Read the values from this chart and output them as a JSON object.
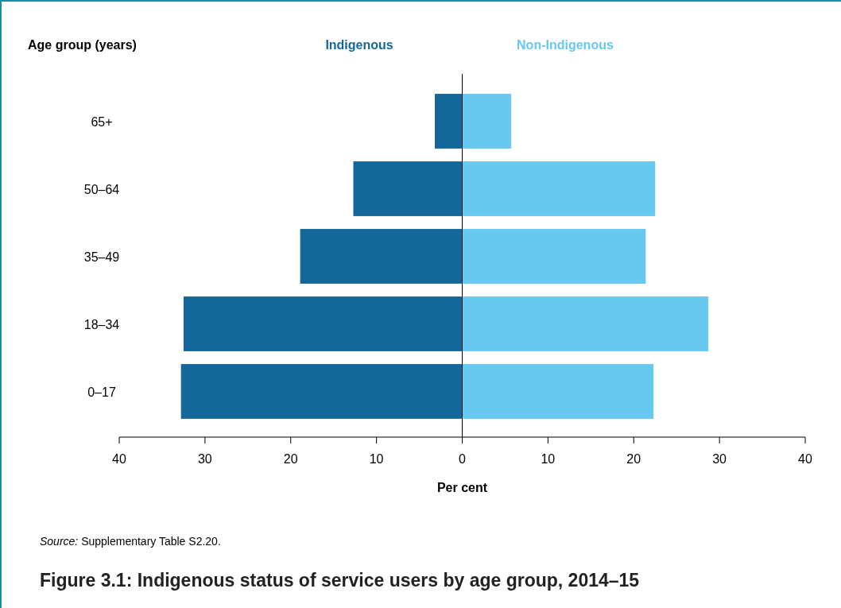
{
  "chart_data": {
    "type": "bar",
    "orientation": "horizontal",
    "title": "Figure 3.1: Indigenous status of service users by age group, 2014–15",
    "ylabel": "Age group (years)",
    "xlabel": "Per cent",
    "categories": [
      "65+",
      "50–64",
      "35–49",
      "18–34",
      "0–17"
    ],
    "series": [
      {
        "name": "Indigenous",
        "color": "#14679a",
        "values": [
          -3.2,
          -12.7,
          -18.9,
          -32.5,
          -32.8
        ]
      },
      {
        "name": "Non-Indigenous",
        "color": "#67c8f0",
        "values": [
          5.7,
          22.5,
          21.4,
          28.7,
          22.3
        ]
      }
    ],
    "xlim": [
      -40,
      40
    ],
    "xticks": [
      {
        "value": -40,
        "label": "40"
      },
      {
        "value": -30,
        "label": "30"
      },
      {
        "value": -20,
        "label": "20"
      },
      {
        "value": -10,
        "label": "10"
      },
      0,
      10,
      20,
      30,
      40
    ],
    "stacked": true,
    "annotations": [
      "Source: Supplementary Table S2.20."
    ]
  }
}
